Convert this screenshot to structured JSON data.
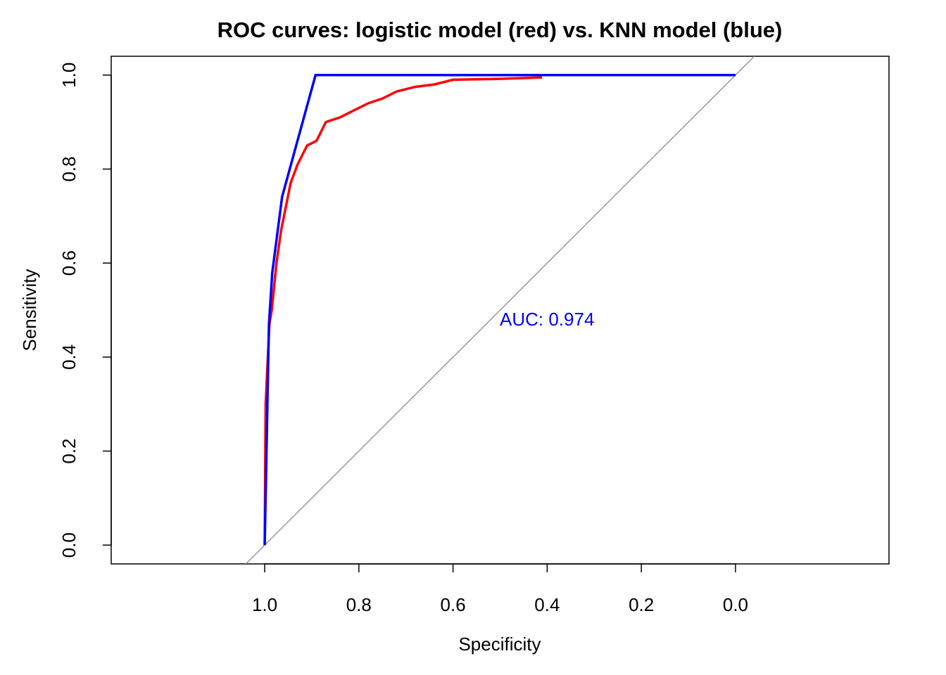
{
  "chart_data": {
    "type": "line",
    "title": "ROC curves: logistic model (red) vs. KNN model (blue)",
    "x_label": "Specificity",
    "y_label": "Sensitivity",
    "annotation": "AUC: 0.974",
    "annotation_color": "#0000ff",
    "xlim": [
      1.326,
      -0.326
    ],
    "ylim": [
      -0.04,
      1.04
    ],
    "xticks": [
      {
        "value": 1,
        "label": "1.0"
      },
      {
        "value": 0.8,
        "label": "0.8"
      },
      {
        "value": 0.6,
        "label": "0.6"
      },
      {
        "value": 0.4,
        "label": "0.4"
      },
      {
        "value": 0.2,
        "label": "0.2"
      },
      {
        "value": 0,
        "label": "0.0"
      }
    ],
    "yticks": [
      {
        "value": 0,
        "label": "0.0"
      },
      {
        "value": 0.2,
        "label": "0.2"
      },
      {
        "value": 0.4,
        "label": "0.4"
      },
      {
        "value": 0.6,
        "label": "0.6"
      },
      {
        "value": 0.8,
        "label": "0.8"
      },
      {
        "value": 1,
        "label": "1.0"
      }
    ],
    "series": [
      {
        "color": "#ff0000",
        "x": [
          1.0,
          0.998,
          0.99,
          0.985,
          0.975,
          0.965,
          0.955,
          0.945,
          0.93,
          0.91,
          0.89,
          0.87,
          0.84,
          0.82,
          0.78,
          0.75,
          0.72,
          0.68,
          0.64,
          0.6,
          0.5,
          0.411
        ],
        "values": [
          0,
          0.3,
          0.47,
          0.5,
          0.6,
          0.67,
          0.72,
          0.77,
          0.81,
          0.85,
          0.86,
          0.9,
          0.91,
          0.92,
          0.94,
          0.95,
          0.965,
          0.975,
          0.98,
          0.99,
          0.992,
          0.995
        ]
      },
      {
        "color": "#0000ff",
        "x": [
          1.0,
          0.991,
          0.984,
          0.963,
          0.892,
          0.0
        ],
        "values": [
          0,
          0.469,
          0.579,
          0.741,
          1.0,
          1.0
        ]
      }
    ]
  }
}
